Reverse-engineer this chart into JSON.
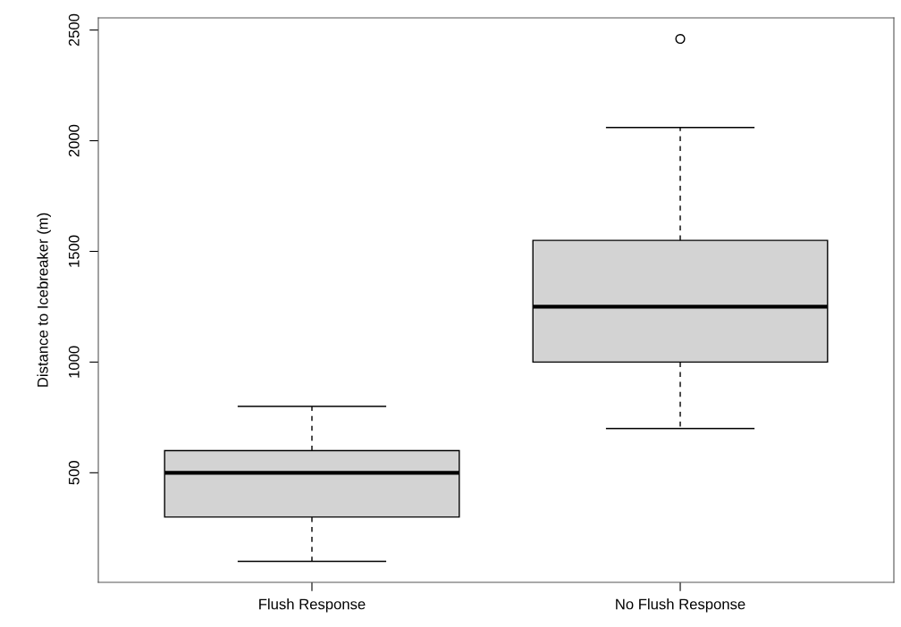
{
  "chart_data": {
    "type": "box",
    "ylabel": "Distance to Icebreaker (m)",
    "categories": [
      "Flush Response",
      "No Flush Response"
    ],
    "boxes": [
      {
        "low": 100,
        "q1": 300,
        "median": 500,
        "q3": 600,
        "high": 800
      },
      {
        "low": 700,
        "q1": 1000,
        "median": 1250,
        "q3": 1550,
        "high": 2060,
        "outliers": [
          2460
        ]
      }
    ],
    "color": "#d3d3d3",
    "ylim": [
      5,
      2555
    ],
    "yticks": [
      500,
      1000,
      1500,
      2000,
      2500
    ],
    "grid": false
  }
}
